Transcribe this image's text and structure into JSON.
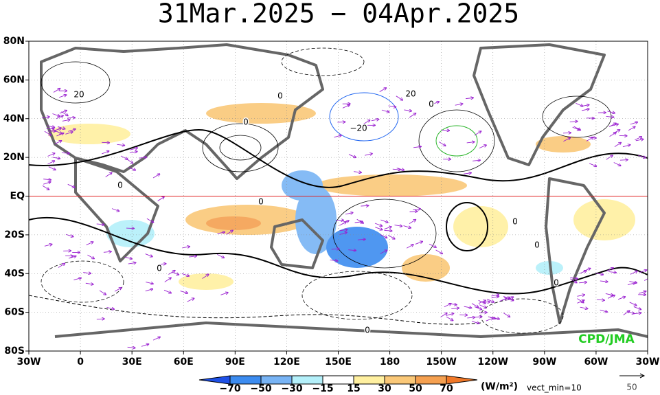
{
  "title": "31Mar.2025 − 04Apr.2025",
  "map": {
    "lat_labels": [
      "80N",
      "60N",
      "40N",
      "20N",
      "EQ",
      "20S",
      "40S",
      "60S",
      "80S"
    ],
    "lon_labels": [
      "30W",
      "0",
      "30E",
      "60E",
      "90E",
      "120E",
      "150E",
      "180",
      "150W",
      "120W",
      "90W",
      "60W",
      "30W"
    ],
    "contour_labels": [
      "20",
      "0",
      "0",
      "20",
      "0",
      "−20",
      "0",
      "0",
      "0",
      "0",
      "0",
      "0",
      "0"
    ],
    "credit": "CPD/JMA"
  },
  "colorbar": {
    "labels": [
      "−70",
      "−50",
      "−30",
      "−15",
      "15",
      "30",
      "50",
      "70"
    ],
    "unit": "(W/m²)",
    "vector_note": "vect_min=10",
    "reference_vector": "50"
  }
}
